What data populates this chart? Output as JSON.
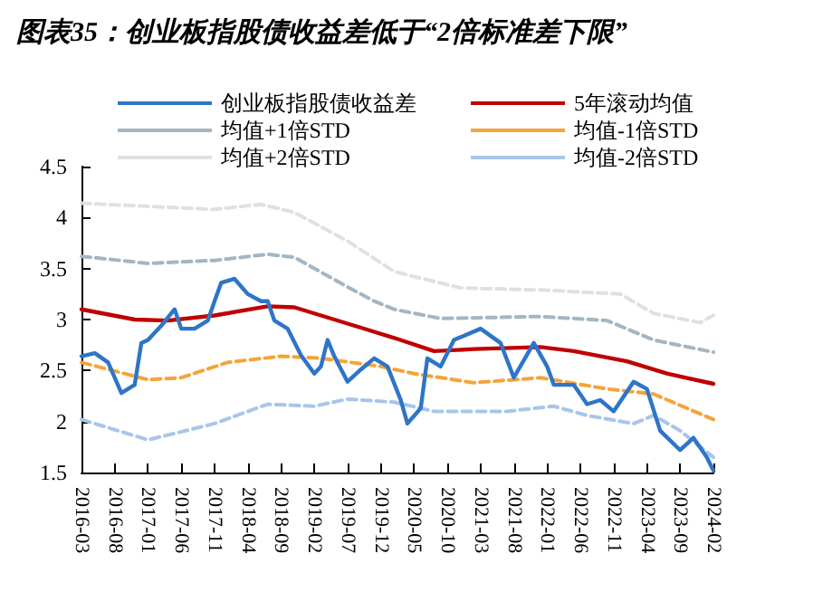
{
  "chart_data": {
    "type": "line",
    "title": "图表35：创业板指股债收益差低于“2倍标准差下限”",
    "xlim": [
      "2016-03",
      "2024-02"
    ],
    "xticks": [
      "2016-03",
      "2016-08",
      "2017-01",
      "2017-06",
      "2017-11",
      "2018-04",
      "2018-09",
      "2019-02",
      "2019-07",
      "2019-12",
      "2020-05",
      "2020-10",
      "2021-03",
      "2021-08",
      "2022-01",
      "2022-06",
      "2022-11",
      "2023-04",
      "2023-09",
      "2024-02"
    ],
    "ylim": [
      1.5,
      4.5
    ],
    "yticks": [
      1.5,
      2,
      2.5,
      3,
      3.5,
      4,
      4.5
    ],
    "grid": false,
    "legend": "top",
    "marker": "none",
    "series": [
      {
        "name": "创业板指股债收益差",
        "color": "#2e75c8",
        "line_style": "solid",
        "x": [
          "2016-03",
          "2016-05",
          "2016-07",
          "2016-09",
          "2016-11",
          "2016-12",
          "2017-01",
          "2017-03",
          "2017-05",
          "2017-06",
          "2017-08",
          "2017-10",
          "2017-11",
          "2017-12",
          "2018-02",
          "2018-04",
          "2018-06",
          "2018-07",
          "2018-08",
          "2018-10",
          "2018-12",
          "2019-02",
          "2019-03",
          "2019-04",
          "2019-05",
          "2019-07",
          "2019-09",
          "2019-11",
          "2020-01",
          "2020-03",
          "2020-04",
          "2020-06",
          "2020-07",
          "2020-09",
          "2020-11",
          "2021-03",
          "2021-06",
          "2021-08",
          "2021-11",
          "2022-01",
          "2022-02",
          "2022-05",
          "2022-07",
          "2022-09",
          "2022-11",
          "2023-02",
          "2023-04",
          "2023-06",
          "2023-09",
          "2023-11",
          "2024-01",
          "2024-02"
        ],
        "values": [
          2.64,
          2.67,
          2.58,
          2.28,
          2.36,
          2.77,
          2.8,
          2.94,
          3.1,
          2.91,
          2.91,
          2.99,
          3.18,
          3.36,
          3.4,
          3.25,
          3.18,
          3.18,
          2.99,
          2.91,
          2.65,
          2.47,
          2.54,
          2.8,
          2.64,
          2.39,
          2.51,
          2.62,
          2.54,
          2.21,
          1.98,
          2.13,
          2.62,
          2.54,
          2.8,
          2.91,
          2.77,
          2.43,
          2.77,
          2.54,
          2.36,
          2.36,
          2.17,
          2.21,
          2.1,
          2.39,
          2.32,
          1.91,
          1.72,
          1.84,
          1.65,
          1.52
        ]
      },
      {
        "name": "5年滚动均值",
        "color": "#c00000",
        "line_style": "solid",
        "x": [
          "2016-03",
          "2016-11",
          "2017-04",
          "2017-11",
          "2018-07",
          "2018-11",
          "2019-05",
          "2019-10",
          "2020-02",
          "2020-08",
          "2021-02",
          "2021-12",
          "2022-05",
          "2023-01",
          "2023-07",
          "2024-02"
        ],
        "values": [
          3.1,
          3.0,
          2.99,
          3.04,
          3.13,
          3.12,
          3.0,
          2.9,
          2.82,
          2.69,
          2.71,
          2.73,
          2.69,
          2.59,
          2.47,
          2.37
        ]
      },
      {
        "name": "均值+1倍STD",
        "color": "#a3b6c2",
        "line_style": "dashed",
        "x": [
          "2016-03",
          "2017-01",
          "2017-11",
          "2018-07",
          "2018-11",
          "2019-07",
          "2019-11",
          "2020-02",
          "2020-09",
          "2021-12",
          "2022-10",
          "2023-05",
          "2024-02"
        ],
        "values": [
          3.62,
          3.55,
          3.58,
          3.64,
          3.61,
          3.32,
          3.18,
          3.1,
          3.01,
          3.03,
          2.99,
          2.8,
          2.68
        ]
      },
      {
        "name": "均值-1倍STD",
        "color": "#f6a33a",
        "line_style": "dashed",
        "x": [
          "2016-03",
          "2017-01",
          "2017-06",
          "2018-01",
          "2018-09",
          "2019-03",
          "2019-12",
          "2020-05",
          "2021-02",
          "2021-12",
          "2022-10",
          "2023-05",
          "2024-02"
        ],
        "values": [
          2.58,
          2.41,
          2.43,
          2.58,
          2.64,
          2.62,
          2.54,
          2.47,
          2.38,
          2.43,
          2.32,
          2.27,
          2.02
        ]
      },
      {
        "name": "均值+2倍STD",
        "color": "#e0e0e0",
        "line_style": "dashed",
        "x": [
          "2016-03",
          "2017-01",
          "2017-11",
          "2018-06",
          "2018-11",
          "2019-07",
          "2020-02",
          "2020-12",
          "2021-12",
          "2022-12",
          "2023-05",
          "2023-12",
          "2024-02"
        ],
        "values": [
          4.14,
          4.11,
          4.08,
          4.13,
          4.05,
          3.77,
          3.47,
          3.31,
          3.29,
          3.25,
          3.06,
          2.97,
          3.04
        ]
      },
      {
        "name": "均值-2倍STD",
        "color": "#a9c5ea",
        "line_style": "dashed",
        "x": [
          "2016-03",
          "2017-01",
          "2017-11",
          "2018-07",
          "2019-02",
          "2019-07",
          "2020-02",
          "2020-08",
          "2021-07",
          "2022-02",
          "2022-07",
          "2023-02",
          "2023-05",
          "2023-09",
          "2024-02"
        ],
        "values": [
          2.02,
          1.82,
          1.98,
          2.17,
          2.15,
          2.22,
          2.19,
          2.1,
          2.1,
          2.15,
          2.06,
          1.98,
          2.06,
          1.91,
          1.65
        ]
      }
    ]
  }
}
